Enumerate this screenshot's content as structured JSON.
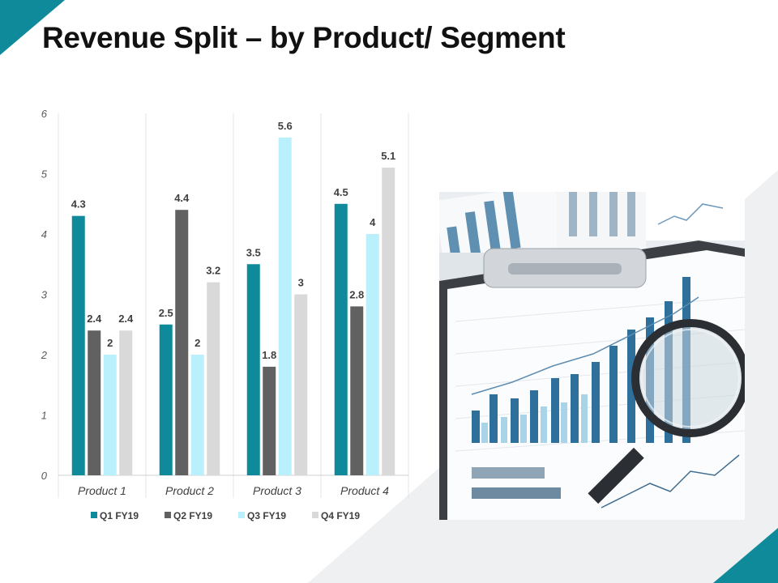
{
  "slide": {
    "title": "Revenue Split – by Product/ Segment"
  },
  "colors": {
    "accent": "#0e8a9a",
    "q1": "#0e8a9a",
    "q2": "#616161",
    "q3": "#baf0fb",
    "q4": "#d9d9d9"
  },
  "photo": {
    "icon": "financial-charts-magnifier-photo"
  },
  "chart_data": {
    "type": "bar",
    "title": "",
    "xlabel": "",
    "ylabel": "",
    "categories": [
      "Product 1",
      "Product 2",
      "Product 3",
      "Product 4"
    ],
    "ylim": [
      0,
      6
    ],
    "yticks": [
      0,
      1,
      2,
      3,
      4,
      5,
      6
    ],
    "grid": "vertical separators",
    "legend": "bottom",
    "series": [
      {
        "name": "Q1 FY19",
        "color": "#0e8a9a",
        "values": [
          4.3,
          2.5,
          3.5,
          4.5
        ]
      },
      {
        "name": "Q2 FY19",
        "color": "#616161",
        "values": [
          2.4,
          4.4,
          1.8,
          2.8
        ]
      },
      {
        "name": "Q3 FY19",
        "color": "#baf0fb",
        "values": [
          2,
          2,
          5.6,
          4
        ]
      },
      {
        "name": "Q4 FY19",
        "color": "#d9d9d9",
        "values": [
          2.4,
          3.2,
          3,
          5.1
        ]
      }
    ]
  }
}
